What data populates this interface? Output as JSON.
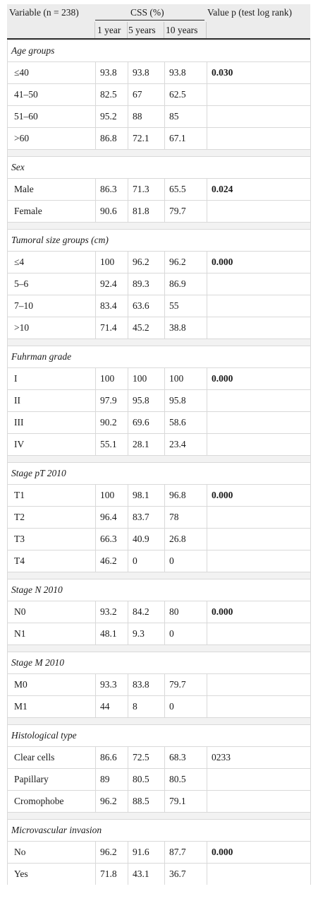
{
  "header": {
    "variable": "Variable (n = 238)",
    "css": "CSS (%)",
    "value_p": "Value p (test log rank)",
    "col_1year": "1 year",
    "col_5years": "5 years",
    "col_10years": "10 years"
  },
  "groups": [
    {
      "title": "Age groups",
      "rows": [
        {
          "label": "≤40",
          "y1": "93.8",
          "y5": "93.8",
          "y10": "93.8",
          "p": "0.030",
          "bold": true
        },
        {
          "label": "41–50",
          "y1": "82.5",
          "y5": "67",
          "y10": "62.5",
          "p": "",
          "bold": false
        },
        {
          "label": "51–60",
          "y1": "95.2",
          "y5": "88",
          "y10": "85",
          "p": "",
          "bold": false
        },
        {
          "label": ">60",
          "y1": "86.8",
          "y5": "72.1",
          "y10": "67.1",
          "p": "",
          "bold": false
        }
      ]
    },
    {
      "title": "Sex",
      "rows": [
        {
          "label": "Male",
          "y1": "86.3",
          "y5": "71.3",
          "y10": "65.5",
          "p": "0.024",
          "bold": true
        },
        {
          "label": "Female",
          "y1": "90.6",
          "y5": "81.8",
          "y10": "79.7",
          "p": "",
          "bold": false
        }
      ]
    },
    {
      "title": "Tumoral size groups (cm)",
      "rows": [
        {
          "label": "≤4",
          "y1": "100",
          "y5": "96.2",
          "y10": "96.2",
          "p": "0.000",
          "bold": true
        },
        {
          "label": "5–6",
          "y1": "92.4",
          "y5": "89.3",
          "y10": "86.9",
          "p": "",
          "bold": false
        },
        {
          "label": "7–10",
          "y1": "83.4",
          "y5": "63.6",
          "y10": "55",
          "p": "",
          "bold": false
        },
        {
          "label": ">10",
          "y1": "71.4",
          "y5": "45.2",
          "y10": "38.8",
          "p": "",
          "bold": false
        }
      ]
    },
    {
      "title": "Fuhrman grade",
      "rows": [
        {
          "label": "I",
          "y1": "100",
          "y5": "100",
          "y10": "100",
          "p": "0.000",
          "bold": true
        },
        {
          "label": "II",
          "y1": "97.9",
          "y5": "95.8",
          "y10": "95.8",
          "p": "",
          "bold": false
        },
        {
          "label": "III",
          "y1": "90.2",
          "y5": "69.6",
          "y10": "58.6",
          "p": "",
          "bold": false
        },
        {
          "label": "IV",
          "y1": "55.1",
          "y5": "28.1",
          "y10": "23.4",
          "p": "",
          "bold": false
        }
      ]
    },
    {
      "title": "Stage pT 2010",
      "rows": [
        {
          "label": "T1",
          "y1": "100",
          "y5": "98.1",
          "y10": "96.8",
          "p": "0.000",
          "bold": true
        },
        {
          "label": "T2",
          "y1": "96.4",
          "y5": "83.7",
          "y10": "78",
          "p": "",
          "bold": false
        },
        {
          "label": "T3",
          "y1": "66.3",
          "y5": "40.9",
          "y10": "26.8",
          "p": "",
          "bold": false
        },
        {
          "label": "T4",
          "y1": "46.2",
          "y5": "0",
          "y10": "0",
          "p": "",
          "bold": false
        }
      ]
    },
    {
      "title": "Stage N 2010",
      "rows": [
        {
          "label": "N0",
          "y1": "93.2",
          "y5": "84.2",
          "y10": "80",
          "p": "0.000",
          "bold": true
        },
        {
          "label": "N1",
          "y1": "48.1",
          "y5": "9.3",
          "y10": "0",
          "p": "",
          "bold": false
        }
      ]
    },
    {
      "title": "Stage M 2010",
      "rows": [
        {
          "label": "M0",
          "y1": "93.3",
          "y5": "83.8",
          "y10": "79.7",
          "p": "",
          "bold": false
        },
        {
          "label": "M1",
          "y1": "44",
          "y5": "8",
          "y10": "0",
          "p": "",
          "bold": false
        }
      ]
    },
    {
      "title": "Histological type",
      "rows": [
        {
          "label": "Clear cells",
          "y1": "86.6",
          "y5": "72.5",
          "y10": "68.3",
          "p": "0233",
          "bold": false
        },
        {
          "label": "Papillary",
          "y1": "89",
          "y5": "80.5",
          "y10": "80.5",
          "p": "",
          "bold": false
        },
        {
          "label": "Cromophobe",
          "y1": "96.2",
          "y5": "88.5",
          "y10": "79.1",
          "p": "",
          "bold": false
        }
      ]
    },
    {
      "title": "Microvascular invasion",
      "rows": [
        {
          "label": "No",
          "y1": "96.2",
          "y5": "91.6",
          "y10": "87.7",
          "p": "0.000",
          "bold": true
        },
        {
          "label": "Yes",
          "y1": "71.8",
          "y5": "43.1",
          "y10": "36.7",
          "p": "",
          "bold": false
        }
      ]
    }
  ]
}
